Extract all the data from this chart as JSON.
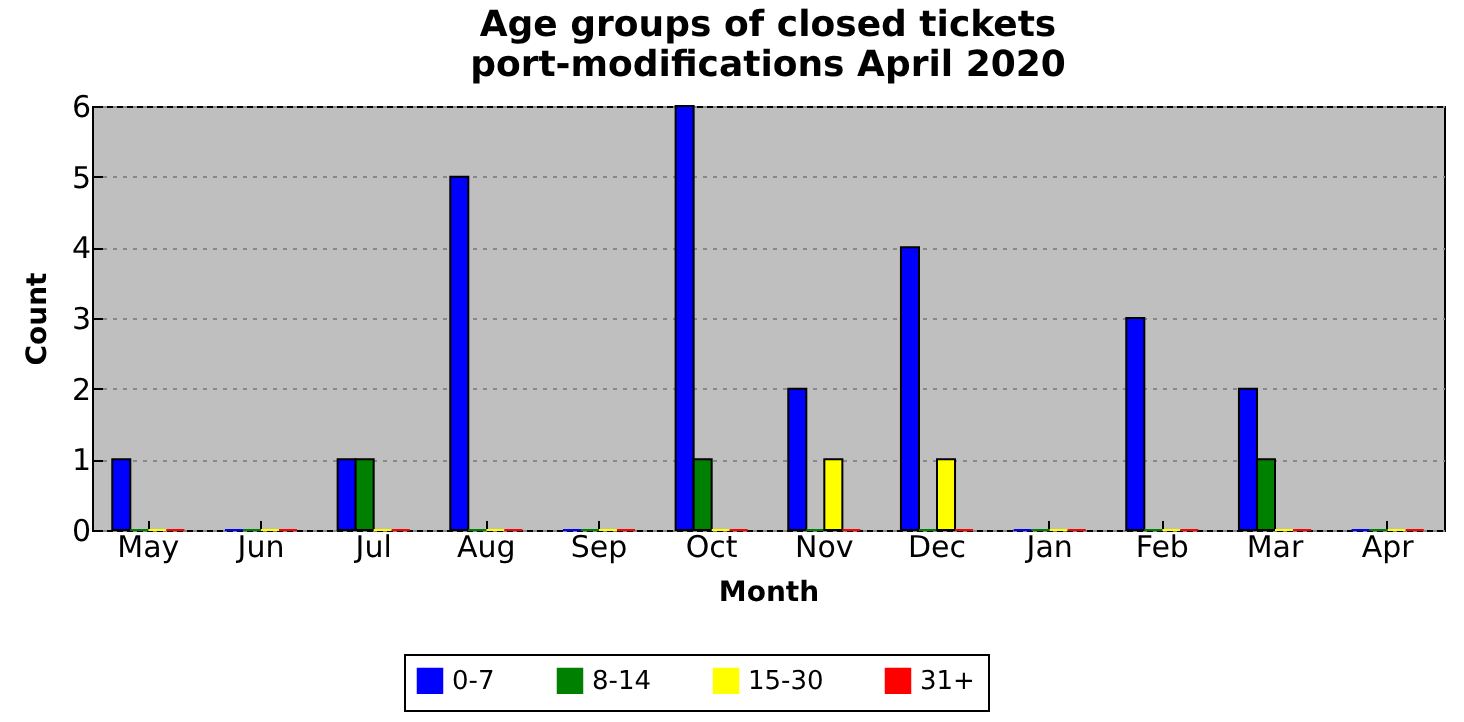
{
  "chart_data": {
    "type": "bar",
    "title": "Age groups of closed tickets\nport-modifications April 2020",
    "xlabel": "Month",
    "ylabel": "Count",
    "categories": [
      "May",
      "Jun",
      "Jul",
      "Aug",
      "Sep",
      "Oct",
      "Nov",
      "Dec",
      "Jan",
      "Feb",
      "Mar",
      "Apr"
    ],
    "series": [
      {
        "name": "0-7",
        "color": "#0000ff",
        "values": [
          1,
          0,
          1,
          5,
          0,
          6,
          2,
          4,
          0,
          3,
          2,
          0
        ]
      },
      {
        "name": "8-14",
        "color": "#008000",
        "values": [
          0,
          0,
          1,
          0,
          0,
          1,
          0,
          0,
          0,
          0,
          1,
          0
        ]
      },
      {
        "name": "15-30",
        "color": "#ffff00",
        "values": [
          0,
          0,
          0,
          0,
          0,
          0,
          1,
          1,
          0,
          0,
          0,
          0
        ]
      },
      {
        "name": "31+",
        "color": "#ff0000",
        "values": [
          0,
          0,
          0,
          0,
          0,
          0,
          0,
          0,
          0,
          0,
          0,
          0
        ]
      }
    ],
    "ylim": [
      0,
      6
    ],
    "yticks": [
      0,
      1,
      2,
      3,
      4,
      5,
      6
    ],
    "grid": "y",
    "legend": "bottom"
  }
}
